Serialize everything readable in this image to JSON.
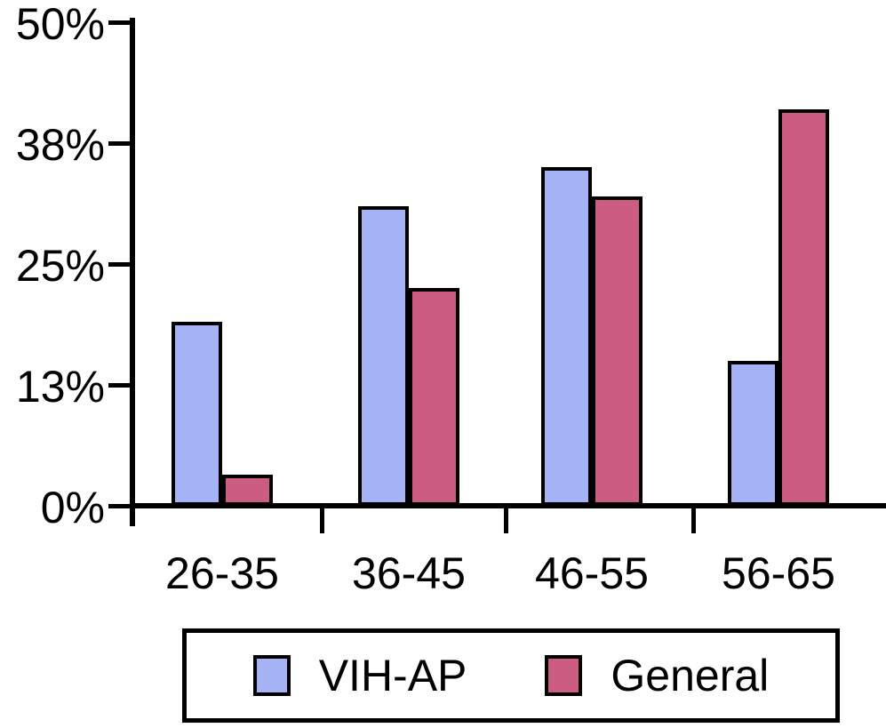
{
  "chart_data": {
    "type": "bar",
    "categories": [
      "26-35",
      "36-45",
      "46-55",
      "56-65"
    ],
    "series": [
      {
        "name": "VIH-AP",
        "color": "#A5B2F6",
        "values": [
          19,
          31,
          35,
          15
        ]
      },
      {
        "name": "General",
        "color": "#CC5C82",
        "values": [
          3.2,
          22.5,
          32,
          41
        ]
      }
    ],
    "y_ticks": [
      {
        "label": "50%",
        "value": 50
      },
      {
        "label": "38%",
        "value": 37.5
      },
      {
        "label": "25%",
        "value": 25
      },
      {
        "label": "13%",
        "value": 12.5
      },
      {
        "label": "0%",
        "value": 0
      }
    ],
    "ylim": [
      0,
      50
    ],
    "grid": false,
    "legend_position": "bottom"
  },
  "colors": {
    "axis": "#000000",
    "text": "#000000",
    "background": "#FFFFFF",
    "bar_border": "#000000"
  }
}
